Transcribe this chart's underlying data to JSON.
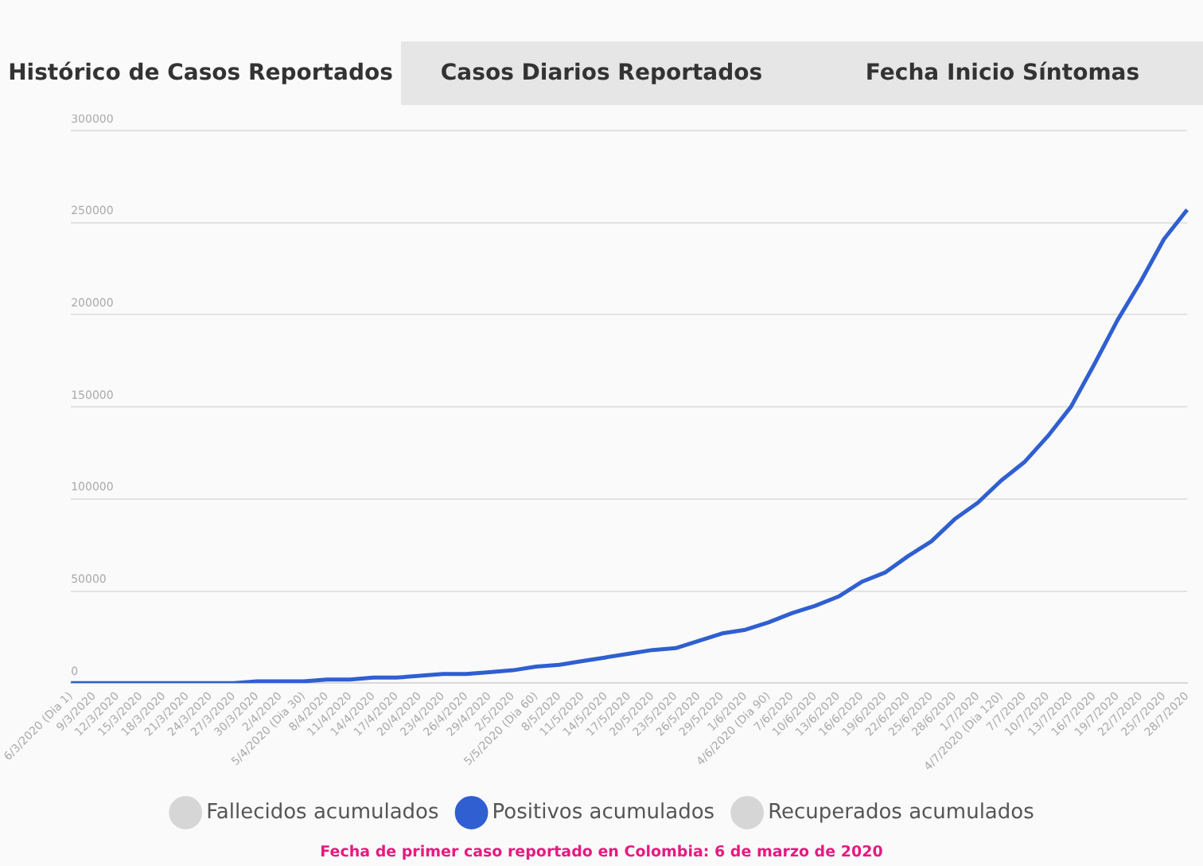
{
  "chart_data": {
    "type": "line",
    "categories": [
      "6/3/2020 (Dia 1)",
      "9/3/2020",
      "12/3/2020",
      "15/3/2020",
      "18/3/2020",
      "21/3/2020",
      "24/3/2020",
      "27/3/2020",
      "30/3/2020",
      "2/4/2020",
      "5/4/2020 (Dia 30)",
      "8/4/2020",
      "11/4/2020",
      "14/4/2020",
      "17/4/2020",
      "20/4/2020",
      "23/4/2020",
      "26/4/2020",
      "29/4/2020",
      "2/5/2020",
      "5/5/2020 (Dia 60)",
      "8/5/2020",
      "11/5/2020",
      "14/5/2020",
      "17/5/2020",
      "20/5/2020",
      "23/5/2020",
      "26/5/2020",
      "29/5/2020",
      "1/6/2020",
      "4/6/2020 (Dia 90)",
      "7/6/2020",
      "10/6/2020",
      "13/6/2020",
      "16/6/2020",
      "19/6/2020",
      "22/6/2020",
      "25/6/2020",
      "28/6/2020",
      "1/7/2020",
      "4/7/2020 (Dia 120)",
      "7/7/2020",
      "10/7/2020",
      "13/7/2020",
      "16/7/2020",
      "19/7/2020",
      "22/7/2020",
      "25/7/2020",
      "28/7/2020"
    ],
    "series": [
      {
        "name": "Fallecidos acumulados",
        "color": "#d6d6d6",
        "values": [
          null,
          null,
          null,
          null,
          null,
          null,
          null,
          null,
          null,
          null,
          null,
          null,
          null,
          null,
          null,
          null,
          null,
          null,
          null,
          null,
          null,
          null,
          null,
          null,
          null,
          null,
          null,
          null,
          null,
          null,
          null,
          null,
          null,
          null,
          null,
          null,
          null,
          null,
          null,
          null,
          null,
          null,
          null,
          null,
          null,
          null,
          null,
          null,
          null
        ]
      },
      {
        "name": "Positivos acumulados",
        "color": "#2f5fd0",
        "values": [
          0,
          0,
          0,
          0,
          0,
          0,
          0,
          0,
          1000,
          1000,
          1000,
          2000,
          2000,
          3000,
          3000,
          4000,
          5000,
          5000,
          6000,
          7000,
          9000,
          10000,
          12000,
          14000,
          16000,
          18000,
          19000,
          23000,
          27000,
          29000,
          33000,
          38000,
          42000,
          47000,
          55000,
          60000,
          69000,
          77000,
          89000,
          98000,
          110000,
          120000,
          134000,
          150000,
          173000,
          197000,
          218000,
          241000,
          257000
        ]
      },
      {
        "name": "Recuperados acumulados",
        "color": "#d6d6d6",
        "values": [
          null,
          null,
          null,
          null,
          null,
          null,
          null,
          null,
          null,
          null,
          null,
          null,
          null,
          null,
          null,
          null,
          null,
          null,
          null,
          null,
          null,
          null,
          null,
          null,
          null,
          null,
          null,
          null,
          null,
          null,
          null,
          null,
          null,
          null,
          null,
          null,
          null,
          null,
          null,
          null,
          null,
          null,
          null,
          null,
          null,
          null,
          null,
          null,
          null
        ]
      }
    ],
    "ylim": [
      0,
      300000
    ],
    "yticks": [
      0,
      50000,
      100000,
      150000,
      200000,
      250000,
      300000
    ],
    "grid": "y",
    "legend": "bottom",
    "marker": "none",
    "line_style": "solid",
    "annotations": [
      "Histórico de Casos Reportados",
      "Casos Diarios Reportados",
      "Fecha Inicio Síntomas",
      "Fecha de primer caso reportado en Colombia: 6 de marzo de 2020"
    ]
  }
}
